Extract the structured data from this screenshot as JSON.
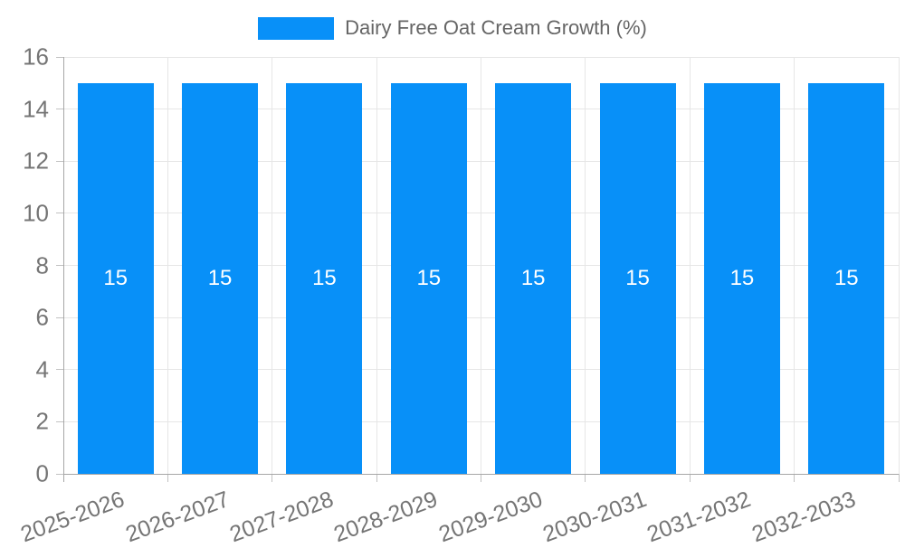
{
  "chart_data": {
    "type": "bar",
    "title": "Dairy Free Oat Cream Growth (%)",
    "categories": [
      "2025-2026",
      "2026-2027",
      "2027-2028",
      "2028-2029",
      "2029-2030",
      "2030-2031",
      "2031-2032",
      "2032-2033"
    ],
    "values": [
      15,
      15,
      15,
      15,
      15,
      15,
      15,
      15
    ],
    "yticks": [
      0,
      2,
      4,
      6,
      8,
      10,
      12,
      14,
      16
    ],
    "ylim": [
      0,
      16
    ],
    "xlabel": "",
    "ylabel": "",
    "grid": true,
    "bar_value_labels_visible": true,
    "legend_position": "top",
    "colors": {
      "bar": "#0890f8",
      "bar_label": "#ffffff",
      "gridline": "#e6e6e6",
      "axis": "#a6a6a6",
      "tick_mark": "#c2c2c2",
      "tick_label": "#757575",
      "title": "#666666",
      "background": "#ffffff"
    }
  }
}
